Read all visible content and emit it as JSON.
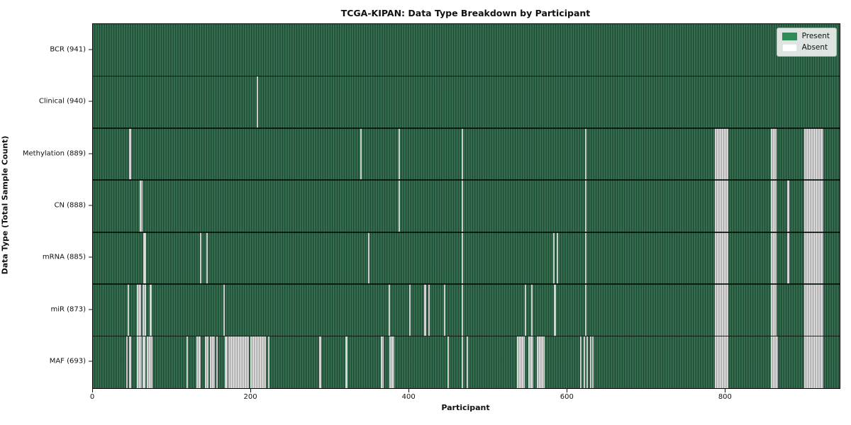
{
  "title": "TCGA-KIPAN: Data Type Breakdown by Participant",
  "legend": {
    "present_label": "Present",
    "absent_label": "Absent",
    "present_color": "#2e8b57",
    "absent_color": "#ffffff"
  },
  "colors": {
    "present_fill": "#2e8b57",
    "absent_fill": "#cccccc",
    "plot_border": "#000000",
    "background": "#ffffff"
  },
  "chart_data": {
    "type": "heatmap",
    "title": "TCGA-KIPAN: Data Type Breakdown by Participant",
    "xlabel": "Participant",
    "ylabel": "Data Type (Total Sample Count)",
    "x_ticks": [
      0,
      200,
      400,
      600,
      800
    ],
    "x_range": [
      0,
      944
    ],
    "n_participants": 941,
    "legend": [
      "Present",
      "Absent"
    ],
    "legend_position": "upper right",
    "rows": [
      {
        "label": "BCR (941)",
        "data_type": "BCR",
        "present_count": 941,
        "absent_intervals": []
      },
      {
        "label": "Clinical (940)",
        "data_type": "Clinical",
        "present_count": 940,
        "absent_intervals": [
          [
            207,
            209
          ]
        ]
      },
      {
        "label": "Methylation (889)",
        "data_type": "Methylation",
        "present_count": 889,
        "absent_intervals": [
          [
            46,
            48
          ],
          [
            338,
            340
          ],
          [
            386,
            388
          ],
          [
            466,
            468
          ],
          [
            622,
            624
          ],
          [
            786,
            803
          ],
          [
            857,
            864
          ],
          [
            899,
            923
          ]
        ]
      },
      {
        "label": "CN (888)",
        "data_type": "CN",
        "present_count": 888,
        "absent_intervals": [
          [
            59,
            63
          ],
          [
            386,
            388
          ],
          [
            466,
            468
          ],
          [
            622,
            624
          ],
          [
            786,
            803
          ],
          [
            857,
            864
          ],
          [
            878,
            880
          ],
          [
            899,
            923
          ]
        ]
      },
      {
        "label": "mRNA (885)",
        "data_type": "mRNA",
        "present_count": 885,
        "absent_intervals": [
          [
            64,
            67
          ],
          [
            135,
            137
          ],
          [
            143,
            145
          ],
          [
            348,
            350
          ],
          [
            466,
            468
          ],
          [
            582,
            584
          ],
          [
            586,
            588
          ],
          [
            622,
            624
          ],
          [
            786,
            803
          ],
          [
            857,
            864
          ],
          [
            878,
            880
          ],
          [
            899,
            923
          ]
        ]
      },
      {
        "label": "miR (873)",
        "data_type": "miR",
        "present_count": 873,
        "absent_intervals": [
          [
            44,
            46
          ],
          [
            56,
            61
          ],
          [
            63,
            67
          ],
          [
            72,
            74
          ],
          [
            165,
            167
          ],
          [
            374,
            376
          ],
          [
            400,
            402
          ],
          [
            419,
            421
          ],
          [
            424,
            426
          ],
          [
            444,
            446
          ],
          [
            466,
            468
          ],
          [
            546,
            548
          ],
          [
            554,
            556
          ],
          [
            583,
            585
          ],
          [
            622,
            624
          ],
          [
            786,
            803
          ],
          [
            857,
            864
          ],
          [
            899,
            923
          ]
        ]
      },
      {
        "label": "MAF (693)",
        "data_type": "MAF",
        "present_count": 693,
        "absent_intervals": [
          [
            42,
            44
          ],
          [
            46,
            48
          ],
          [
            56,
            62
          ],
          [
            63,
            66
          ],
          [
            68,
            75
          ],
          [
            118,
            120
          ],
          [
            131,
            136
          ],
          [
            142,
            146
          ],
          [
            148,
            154
          ],
          [
            156,
            158
          ],
          [
            167,
            170
          ],
          [
            171,
            197
          ],
          [
            199,
            219
          ],
          [
            221,
            223
          ],
          [
            286,
            289
          ],
          [
            319,
            322
          ],
          [
            364,
            368
          ],
          [
            375,
            381
          ],
          [
            448,
            450
          ],
          [
            466,
            468
          ],
          [
            472,
            474
          ],
          [
            536,
            546
          ],
          [
            550,
            557
          ],
          [
            561,
            571
          ],
          [
            616,
            618
          ],
          [
            620,
            622
          ],
          [
            624,
            626
          ],
          [
            628,
            630
          ],
          [
            631,
            633
          ],
          [
            786,
            803
          ],
          [
            857,
            866
          ],
          [
            899,
            923
          ]
        ]
      }
    ]
  }
}
